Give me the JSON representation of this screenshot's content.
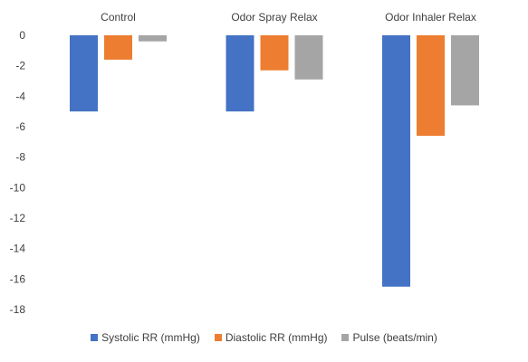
{
  "chart_data": {
    "type": "bar",
    "categories": [
      "Control",
      "Odor Spray Relax",
      "Odor Inhaler Relax"
    ],
    "series": [
      {
        "name": "Systolic RR (mmHg)",
        "values": [
          -5.0,
          -5.0,
          -16.5
        ],
        "color": "#4472C4"
      },
      {
        "name": "Diastolic RR (mmHg)",
        "values": [
          -1.6,
          -2.3,
          -6.6
        ],
        "color": "#ED7D31"
      },
      {
        "name": "Pulse (beats/min)",
        "values": [
          -0.4,
          -2.9,
          -4.6
        ],
        "color": "#A5A5A5"
      }
    ],
    "yticks": [
      "0",
      "-2",
      "-4",
      "-6",
      "-8",
      "-10",
      "-12",
      "-14",
      "-16",
      "-18"
    ],
    "ylim": [
      -18,
      0
    ],
    "category_labels_position": "top",
    "legend_position": "bottom",
    "grid": false
  }
}
